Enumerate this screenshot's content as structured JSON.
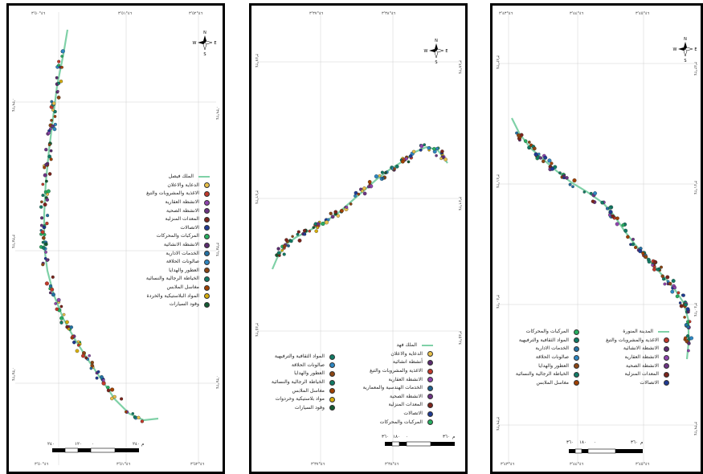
{
  "colors": {
    "road": "#7fd1a7",
    "frame": "#000000",
    "grid": "#d0d0d0"
  },
  "panels": [
    {
      "id": "left",
      "road_name": "الملك فيصل",
      "top_ticks": [
        "٤٦°٥٠'٣",
        "٤٦°٥١'٣",
        "٤٦°٥٢'٣"
      ],
      "bottom_ticks": [
        "٤٦°٥٠'٣",
        "٤٦°٥١'٣",
        "٤٦°٥٢'٣"
      ],
      "left_ticks": [
        "٢٤°٣٩'٠",
        "٢٤°٣٨'٣",
        "٢٤°٣٨'٠",
        "٢٤°٣٧'٣"
      ],
      "right_ticks": [
        "٢٤°٣٩'٠",
        "٢٤°٣٨'٣",
        "٢٤°٣٨'٠",
        "٢٤°٣٧'٣"
      ],
      "scale_labels": [
        "٢٤٠",
        "١٢٠",
        "٠",
        "٢٤٠"
      ],
      "scale_unit": "م",
      "legend": [
        {
          "label": "الدعاية والاعلان",
          "color": "#e8c04a"
        },
        {
          "label": "الاغذية والمشروبات والتبغ",
          "color": "#c0392b"
        },
        {
          "label": "الانشطة العقارية",
          "color": "#8e44ad"
        },
        {
          "label": "الانشطة الصحية",
          "color": "#6c3483"
        },
        {
          "label": "المعدات المنزلية",
          "color": "#7b241c"
        },
        {
          "label": "الاتصالات",
          "color": "#1f3a93"
        },
        {
          "label": "المركبات والمحركات",
          "color": "#27ae60"
        },
        {
          "label": "الانشطة الانشائية",
          "color": "#5b2c6f"
        },
        {
          "label": "الخدمات الادارية",
          "color": "#2471a3"
        },
        {
          "label": "صالونات الحلاقة",
          "color": "#2e86c1"
        },
        {
          "label": "العطور والهدايا",
          "color": "#8b4513"
        },
        {
          "label": "الخياطة الرجالية والنسائية",
          "color": "#117a65"
        },
        {
          "label": "مغاسل الملابس",
          "color": "#a04000"
        },
        {
          "label": "المواد البلاستيكية والخردة",
          "color": "#d4ac0d"
        },
        {
          "label": "وقود السيارات",
          "color": "#145a32"
        }
      ]
    },
    {
      "id": "middle",
      "road_name": "الملك فهد",
      "top_ticks": [
        "٤٦°٣٧'٣",
        "٤٦°٣٨'٣"
      ],
      "bottom_ticks": [
        "٤٦°٣٧'٣",
        "٤٦°٣٨'٣"
      ],
      "left_ticks": [
        "٢٤°٤٧'٣",
        "٢٤°٤٦'٣",
        "٢٤°٤٥'٣"
      ],
      "right_ticks": [
        "٢٤°٤٧'٣",
        "٢٤°٤٦'٣",
        "٢٤°٤٥'٣"
      ],
      "scale_labels": [
        "٣٦٠",
        "١٨٠",
        "٠",
        "٣٦٠"
      ],
      "scale_unit": "م",
      "legend_right": [
        {
          "label": "الدعاية والاعلان",
          "color": "#e8c04a"
        },
        {
          "label": "أنشطة انشائية",
          "color": "#5b2c6f"
        },
        {
          "label": "الاغذية والمشروبات والتبغ",
          "color": "#c0392b"
        },
        {
          "label": "الانشطة العقارية",
          "color": "#8e44ad"
        },
        {
          "label": "الخدمات الهندسية والمعمارية",
          "color": "#1f618d"
        },
        {
          "label": "الانشطة الصحية",
          "color": "#6c3483"
        },
        {
          "label": "المعدات المنزلية",
          "color": "#7b241c"
        },
        {
          "label": "الاتصالات",
          "color": "#1f3a93"
        },
        {
          "label": "المركبات والمحركات",
          "color": "#27ae60"
        }
      ],
      "legend_left": [
        {
          "label": "المواد الثقافية والترفيهية",
          "color": "#117a65"
        },
        {
          "label": "صالونات الحلاقة",
          "color": "#2e86c1"
        },
        {
          "label": "العطور والهدايا",
          "color": "#8b4513"
        },
        {
          "label": "الخياطة الرجالية والنسائية",
          "color": "#117a65"
        },
        {
          "label": "مغاسل الملابس",
          "color": "#a04000"
        },
        {
          "label": "مواد بلاستيكية وخردوات",
          "color": "#d4ac0d"
        },
        {
          "label": "وقود السيارات",
          "color": "#145a32"
        }
      ]
    },
    {
      "id": "right",
      "road_name": "المدينة المنورة",
      "top_ticks": [
        "٤٦°٤٣'٣",
        "٤٦°٤٤'٣",
        "٤٦°٤٥'٣"
      ],
      "bottom_ticks": [
        "٤٦°٤٣'٣",
        "٤٦°٤٤'٣",
        "٤٦°٤٥'٣"
      ],
      "left_ticks": [
        "٢٤°٤٢'٣",
        "٢٤°٤١'٣",
        "٢٤°٤٠'٣",
        "٢٤°٣٩'٣"
      ],
      "right_ticks": [
        "٢٤°٤٢'٣",
        "٢٤°٤١'٣",
        "٢٤°٤٠'٣",
        "٢٤°٣٩'٣"
      ],
      "scale_labels": [
        "٣٦٠",
        "١٨٠",
        "٠",
        "٣٦٠"
      ],
      "scale_unit": "م",
      "legend_right": [
        {
          "label": "الاغذية والمشروبات والتبغ",
          "color": "#c0392b"
        },
        {
          "label": "الانشطة الانشائية",
          "color": "#5b2c6f"
        },
        {
          "label": "الانشطة العقارية",
          "color": "#8e44ad"
        },
        {
          "label": "الانشطة الصحية",
          "color": "#6c3483"
        },
        {
          "label": "المعدات المنزلية",
          "color": "#7b241c"
        },
        {
          "label": "الاتصالات",
          "color": "#1f3a93"
        }
      ],
      "legend_left": [
        {
          "label": "المركبات والمحركات",
          "color": "#27ae60"
        },
        {
          "label": "المواد الثقافية والترفيهية",
          "color": "#117a65"
        },
        {
          "label": "الخدمات الادارية",
          "color": "#2471a3"
        },
        {
          "label": "صالونات الحلاقة",
          "color": "#2e86c1"
        },
        {
          "label": "العطور والهدايا",
          "color": "#8b4513"
        },
        {
          "label": "الخياطة الرجالية والنسائية",
          "color": "#117a65"
        },
        {
          "label": "مغاسل الملابس",
          "color": "#a04000"
        }
      ]
    }
  ],
  "north_arrow": {
    "n": "N",
    "s": "S",
    "e": "E",
    "w": "W"
  }
}
